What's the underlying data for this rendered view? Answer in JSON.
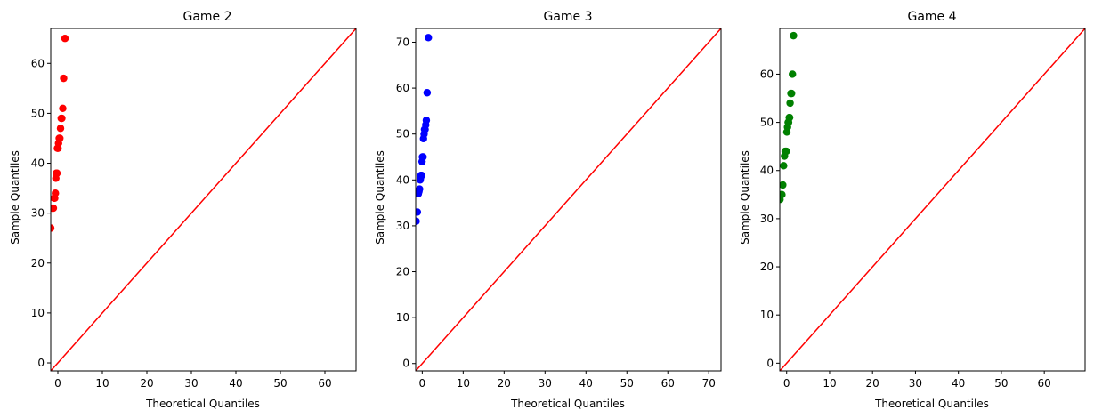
{
  "chart_data": [
    {
      "type": "scatter",
      "title": "Game 2",
      "xlabel": "Theoretical Quantiles",
      "ylabel": "Sample Quantiles",
      "xlim": [
        -1.6,
        67
      ],
      "ylim": [
        -1.6,
        67
      ],
      "xticks": [
        0,
        10,
        20,
        30,
        40,
        50,
        60
      ],
      "yticks": [
        0,
        10,
        20,
        30,
        40,
        50,
        60
      ],
      "grid": false,
      "marker_color": "#ff0000",
      "line_color": "#ff0000",
      "reference_line": "y = x",
      "series": [
        {
          "x": [
            -1.6,
            -1.25,
            -1.0,
            -0.85,
            -0.7,
            -0.55,
            -0.45,
            -0.35,
            -0.2,
            -0.1,
            0.05,
            0.15,
            0.3,
            0.45,
            0.6,
            0.75,
            0.9,
            1.1,
            1.3,
            1.6
          ],
          "y": [
            27,
            31,
            31,
            33,
            33,
            34,
            37,
            38,
            38,
            43,
            43,
            44,
            45,
            45,
            47,
            49,
            49,
            51,
            57,
            65
          ]
        }
      ]
    },
    {
      "type": "scatter",
      "title": "Game 3",
      "xlabel": "Theoretical Quantiles",
      "ylabel": "Sample Quantiles",
      "xlim": [
        -1.6,
        73
      ],
      "ylim": [
        -1.6,
        73
      ],
      "xticks": [
        0,
        10,
        20,
        30,
        40,
        50,
        60,
        70
      ],
      "yticks": [
        0,
        10,
        20,
        30,
        40,
        50,
        60,
        70
      ],
      "grid": false,
      "marker_color": "#0000ff",
      "line_color": "#ff0000",
      "reference_line": "y = x",
      "series": [
        {
          "x": [
            -1.5,
            -1.2,
            -0.95,
            -0.8,
            -0.65,
            -0.5,
            -0.4,
            -0.3,
            -0.15,
            -0.05,
            0.05,
            0.2,
            0.3,
            0.45,
            0.55,
            0.7,
            0.85,
            1.0,
            1.2,
            1.5
          ],
          "y": [
            31,
            33,
            37,
            37.5,
            38,
            40,
            40.5,
            41,
            41,
            44,
            45,
            45,
            49,
            50,
            51,
            51,
            52,
            53,
            59,
            71
          ]
        }
      ]
    },
    {
      "type": "scatter",
      "title": "Game 4",
      "xlabel": "Theoretical Quantiles",
      "ylabel": "Sample Quantiles",
      "xlim": [
        -1.6,
        69.5
      ],
      "ylim": [
        -1.6,
        69.5
      ],
      "xticks": [
        0,
        10,
        20,
        30,
        40,
        50,
        60
      ],
      "yticks": [
        0,
        10,
        20,
        30,
        40,
        50,
        60
      ],
      "grid": false,
      "marker_color": "#008000",
      "line_color": "#ff0000",
      "reference_line": "y = x",
      "series": [
        {
          "x": [
            -1.55,
            -1.3,
            -1.1,
            -0.9,
            -0.7,
            -0.5,
            -0.35,
            -0.2,
            -0.05,
            0.05,
            0.2,
            0.35,
            0.45,
            0.6,
            0.7,
            0.8,
            1.0,
            1.15,
            1.35,
            1.6
          ],
          "y": [
            34,
            35,
            35,
            37,
            41,
            43,
            44,
            44,
            44,
            48,
            49,
            50,
            50,
            51,
            51,
            54,
            56,
            56,
            60,
            68
          ]
        }
      ]
    }
  ]
}
